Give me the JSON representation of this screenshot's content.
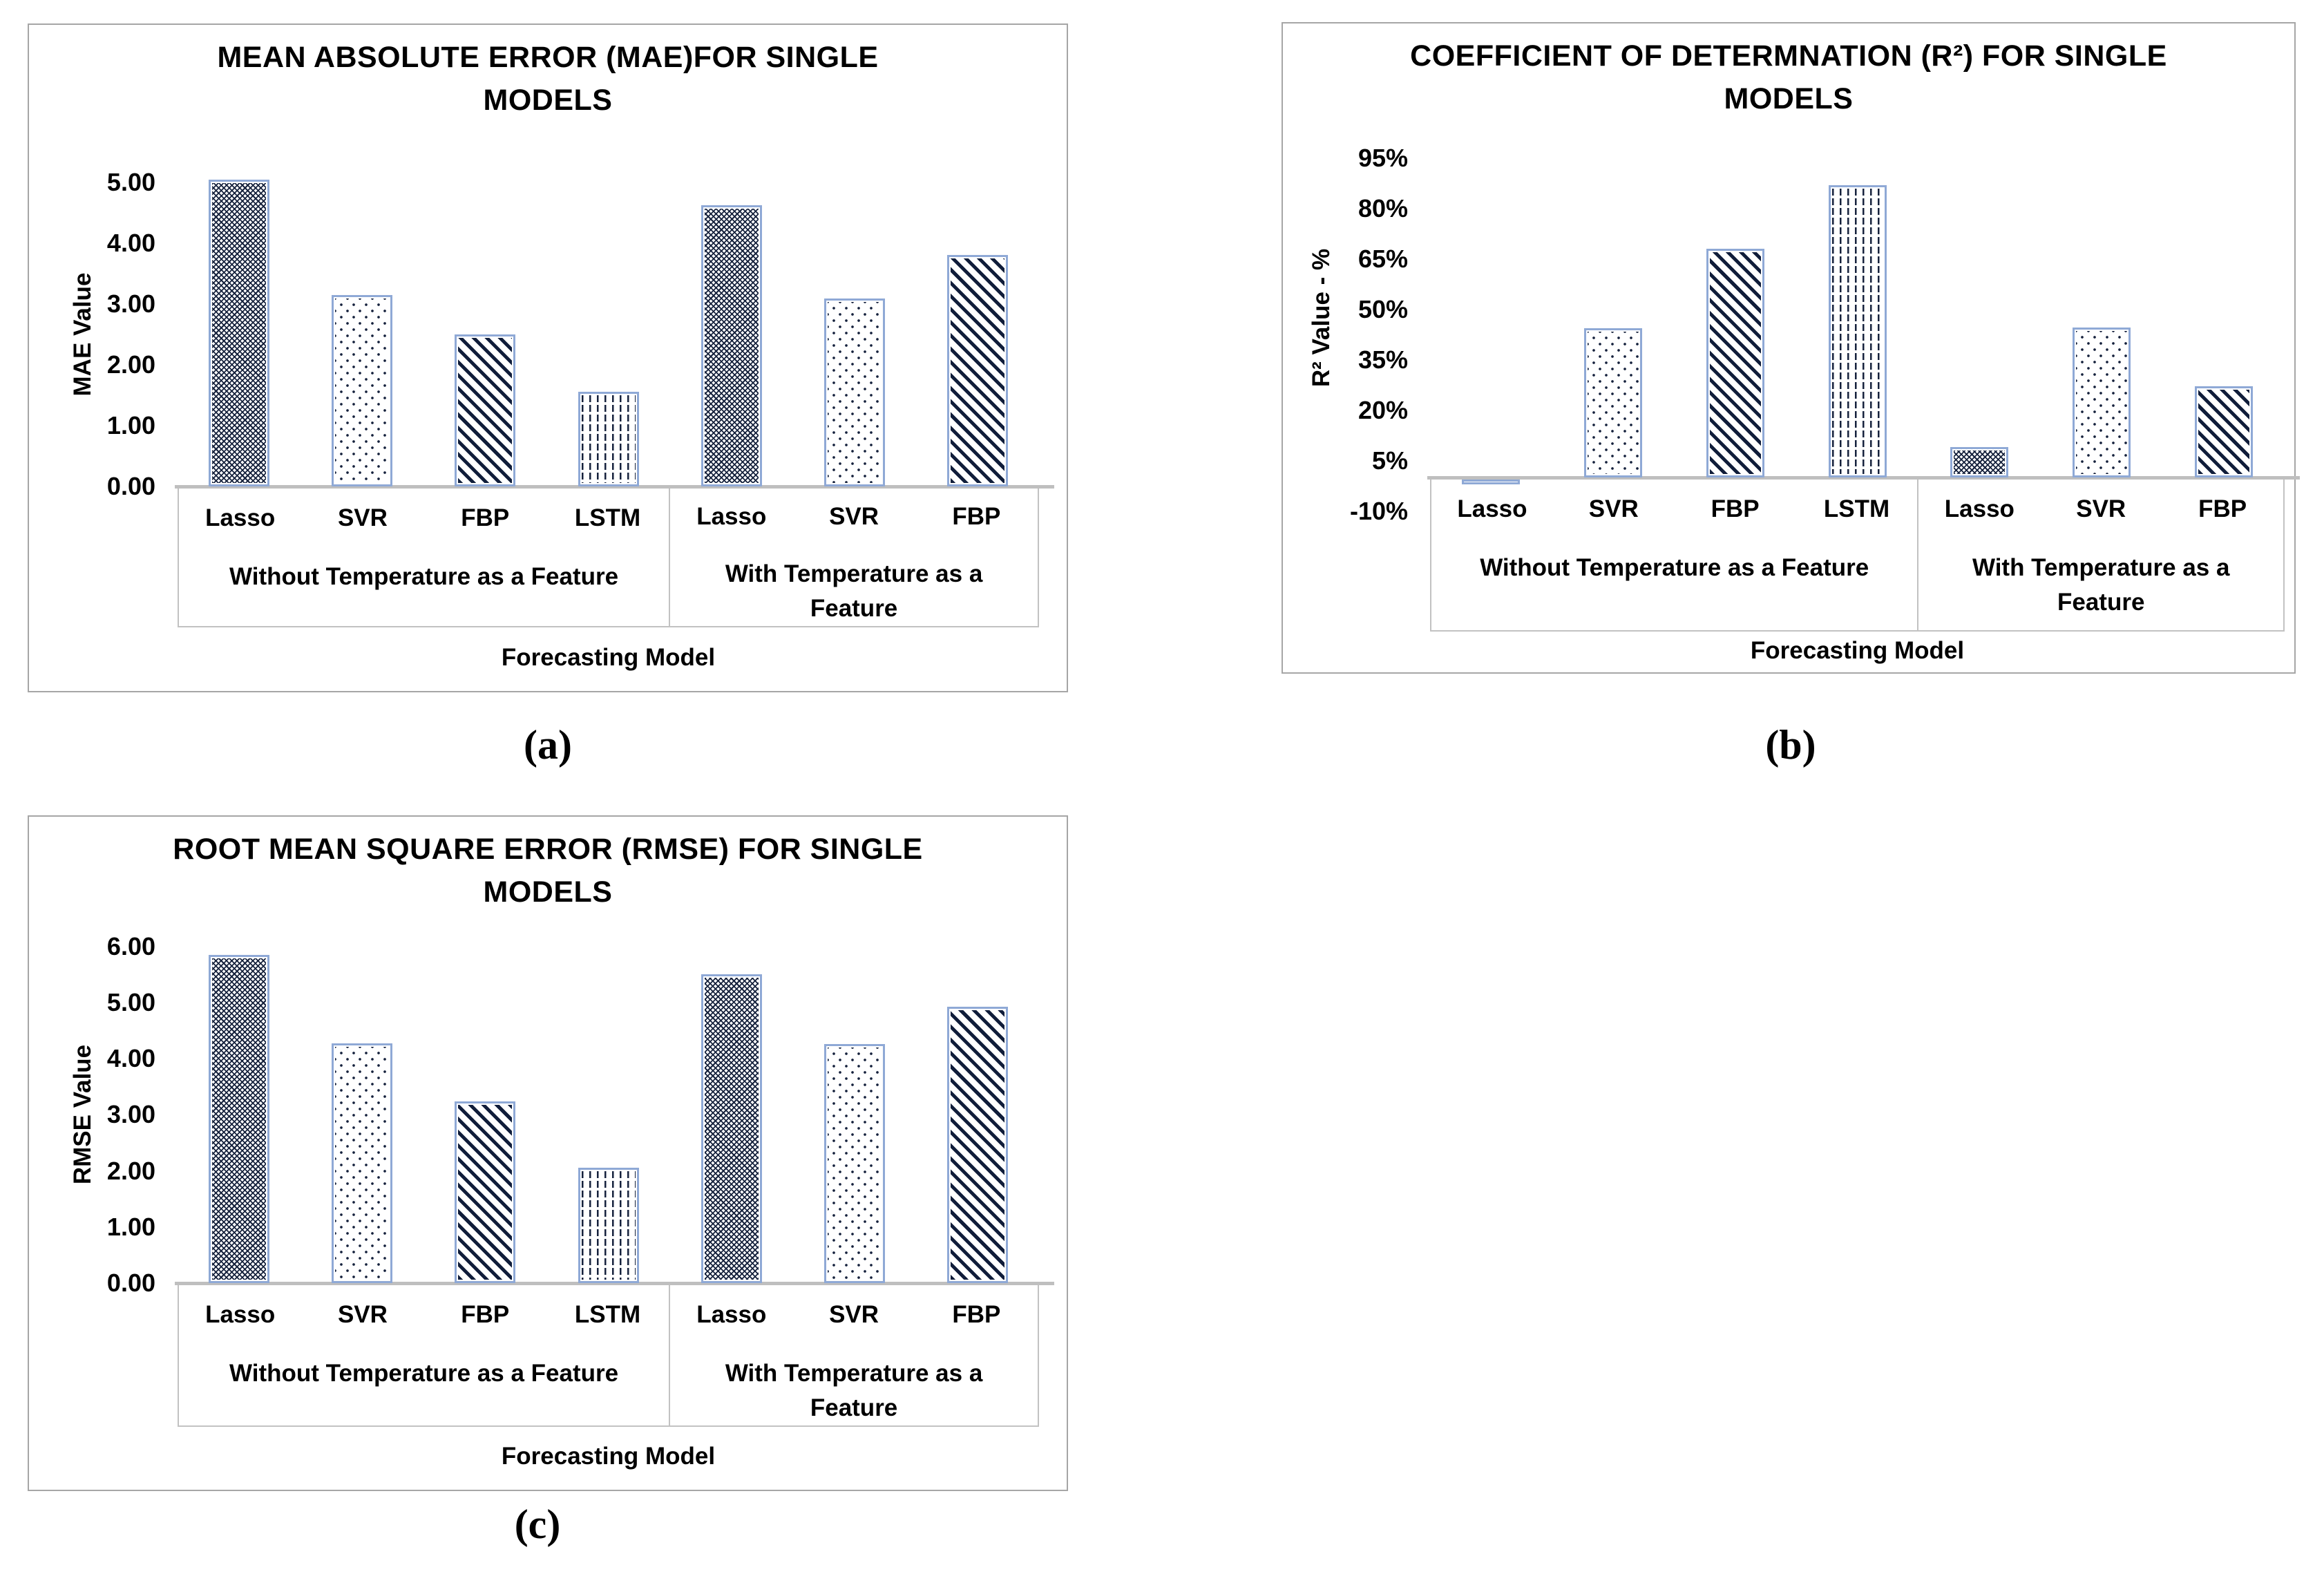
{
  "captions": {
    "a": "(a)",
    "b": "(b)",
    "c": "(c)"
  },
  "colors": {
    "bar_border": "#8fa9d6",
    "pattern_ink": "#16223d",
    "axis_line": "#bfbfbf",
    "frame": "#a6a6a6"
  },
  "chart_data": [
    {
      "type": "bar",
      "title_line1": "MEAN ABSOLUTE ERROR (MAE)FOR SINGLE",
      "title_line2": "MODELS",
      "ylabel": "MAE Value",
      "xlabel": "Forecasting Model",
      "ylim": [
        0,
        5.7
      ],
      "grid": false,
      "legend": "none",
      "ytick_values": [
        0,
        1,
        2,
        3,
        4,
        5
      ],
      "ytick_labels": [
        "0.00",
        "1.00",
        "2.00",
        "3.00",
        "4.00",
        "5.00"
      ],
      "groups": [
        {
          "label": "Without Temperature as a Feature",
          "categories": [
            "Lasso",
            "SVR",
            "FBP",
            "LSTM"
          ],
          "values": [
            5.05,
            3.15,
            2.5,
            1.56
          ],
          "patterns": [
            "dense-crosshatch",
            "dots",
            "diagonal-stripes",
            "vertical-dashes"
          ]
        },
        {
          "label": "With Temperature as a Feature",
          "categories": [
            "Lasso",
            "SVR",
            "FBP"
          ],
          "values": [
            4.63,
            3.09,
            3.81
          ],
          "patterns": [
            "dense-crosshatch",
            "dots",
            "diagonal-stripes"
          ]
        }
      ]
    },
    {
      "type": "bar",
      "title_line1": "COEFFICIENT OF DETERMNATION (R²) FOR SINGLE",
      "title_line2": "MODELS",
      "ylabel": "R² Value - %",
      "xlabel": "Forecasting Model",
      "ylim": [
        -10,
        95
      ],
      "grid": false,
      "legend": "none",
      "unit": "percent",
      "ytick_values": [
        -10,
        5,
        20,
        35,
        50,
        65,
        80,
        95
      ],
      "ytick_labels": [
        "-10%",
        "5%",
        "20%",
        "35%",
        "50%",
        "65%",
        "80%",
        "95%"
      ],
      "groups": [
        {
          "label": "Without Temperature as a Feature",
          "categories": [
            "Lasso",
            "SVR",
            "FBP",
            "LSTM"
          ],
          "values": [
            -1.5,
            44.4,
            68,
            87
          ],
          "patterns": [
            "dense-crosshatch",
            "dots",
            "diagonal-stripes",
            "vertical-dashes"
          ]
        },
        {
          "label": "With Temperature as a Feature",
          "categories": [
            "Lasso",
            "SVR",
            "FBP"
          ],
          "values": [
            9,
            44.6,
            27.1
          ],
          "patterns": [
            "dense-crosshatch",
            "dots",
            "diagonal-stripes"
          ]
        }
      ]
    },
    {
      "type": "bar",
      "title_line1": "ROOT MEAN SQUARE ERROR (RMSE) FOR SINGLE",
      "title_line2": "MODELS",
      "ylabel": "RMSE Value",
      "xlabel": "Forecasting Model",
      "ylim": [
        0,
        6.2
      ],
      "grid": false,
      "legend": "none",
      "ytick_values": [
        0,
        1,
        2,
        3,
        4,
        5,
        6
      ],
      "ytick_labels": [
        "0.00",
        "1.00",
        "2.00",
        "3.00",
        "4.00",
        "5.00",
        "6.00"
      ],
      "groups": [
        {
          "label": "Without Temperature as a Feature",
          "categories": [
            "Lasso",
            "SVR",
            "FBP",
            "LSTM"
          ],
          "values": [
            5.85,
            4.27,
            3.24,
            2.06
          ],
          "patterns": [
            "dense-crosshatch",
            "dots",
            "diagonal-stripes",
            "vertical-dashes"
          ]
        },
        {
          "label": "With Temperature as a Feature",
          "categories": [
            "Lasso",
            "SVR",
            "FBP"
          ],
          "values": [
            5.5,
            4.26,
            4.93
          ],
          "patterns": [
            "dense-crosshatch",
            "dots",
            "diagonal-stripes"
          ]
        }
      ]
    }
  ]
}
